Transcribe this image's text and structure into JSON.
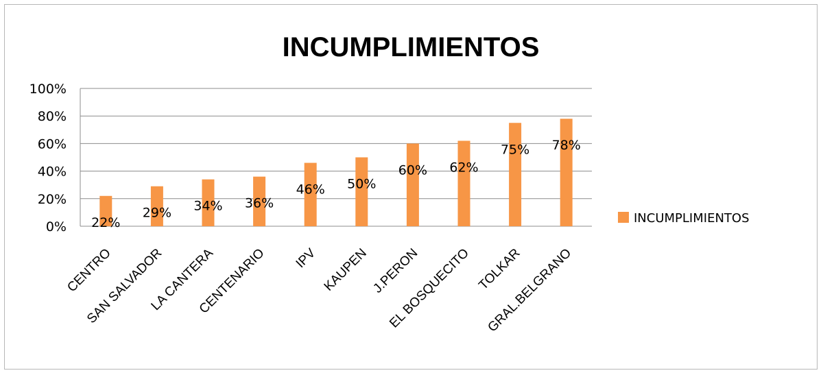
{
  "chart_data": {
    "type": "bar",
    "title": "INCUMPLIMIENTOS",
    "categories": [
      "CENTRO",
      "SAN SALVADOR",
      "LA CANTERA",
      "CENTENARIO",
      "IPV",
      "KAUPEN",
      "J.PERON",
      "EL BOSQUECITO",
      "TOLKAR",
      "GRAL.BELGRANO"
    ],
    "series": [
      {
        "name": "INCUMPLIMIENTOS",
        "values": [
          22,
          29,
          34,
          36,
          46,
          50,
          60,
          62,
          75,
          78
        ],
        "labels": [
          "22%",
          "29%",
          "34%",
          "36%",
          "46%",
          "50%",
          "60%",
          "62%",
          "75%",
          "78%"
        ],
        "color": "#f79646"
      }
    ],
    "ylim": [
      0,
      100
    ],
    "yticks": [
      "0%",
      "20%",
      "40%",
      "60%",
      "80%",
      "100%"
    ],
    "xlabel": "",
    "ylabel": "",
    "grid": true,
    "legend": "right"
  },
  "colors": {
    "bar": "#f79646",
    "grid": "#8c8c8c",
    "axis": "#8c8c8c"
  }
}
